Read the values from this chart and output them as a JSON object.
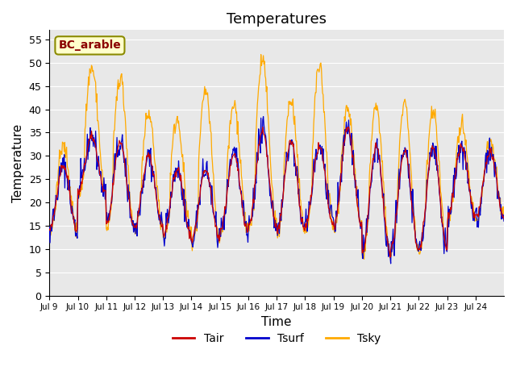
{
  "title": "Temperatures",
  "xlabel": "Time",
  "ylabel": "Temperature",
  "annotation": "BC_arable",
  "ylim": [
    0,
    57
  ],
  "yticks": [
    0,
    5,
    10,
    15,
    20,
    25,
    30,
    35,
    40,
    45,
    50,
    55
  ],
  "x_tick_labels": [
    "Jul 9",
    "Jul 10",
    "Jul 11",
    "Jul 12",
    "Jul 13",
    "Jul 14",
    "Jul 15",
    "Jul 16",
    "Jul 17",
    "Jul 18",
    "Jul 19",
    "Jul 20",
    "Jul 21",
    "Jul 22",
    "Jul 23",
    "Jul 24"
  ],
  "color_tair": "#cc0000",
  "color_tsurf": "#0000cc",
  "color_tsky": "#ffaa00",
  "bg_color": "#e8e8e8",
  "legend_labels": [
    "Tair",
    "Tsurf",
    "Tsky"
  ],
  "title_fontsize": 13,
  "label_fontsize": 11,
  "daily_peaks_air": [
    28,
    34,
    33,
    30,
    27,
    27,
    30,
    35,
    33,
    32,
    36,
    32,
    31,
    32,
    32,
    31
  ],
  "daily_peaks_sky": [
    32,
    49,
    47,
    39,
    38,
    44,
    41,
    51,
    42,
    49,
    40,
    41,
    41,
    40,
    36,
    33
  ],
  "daily_troughs_air": [
    14,
    22,
    15,
    15,
    13,
    12,
    14,
    15,
    14,
    15,
    15,
    9,
    10,
    10,
    17,
    17
  ]
}
